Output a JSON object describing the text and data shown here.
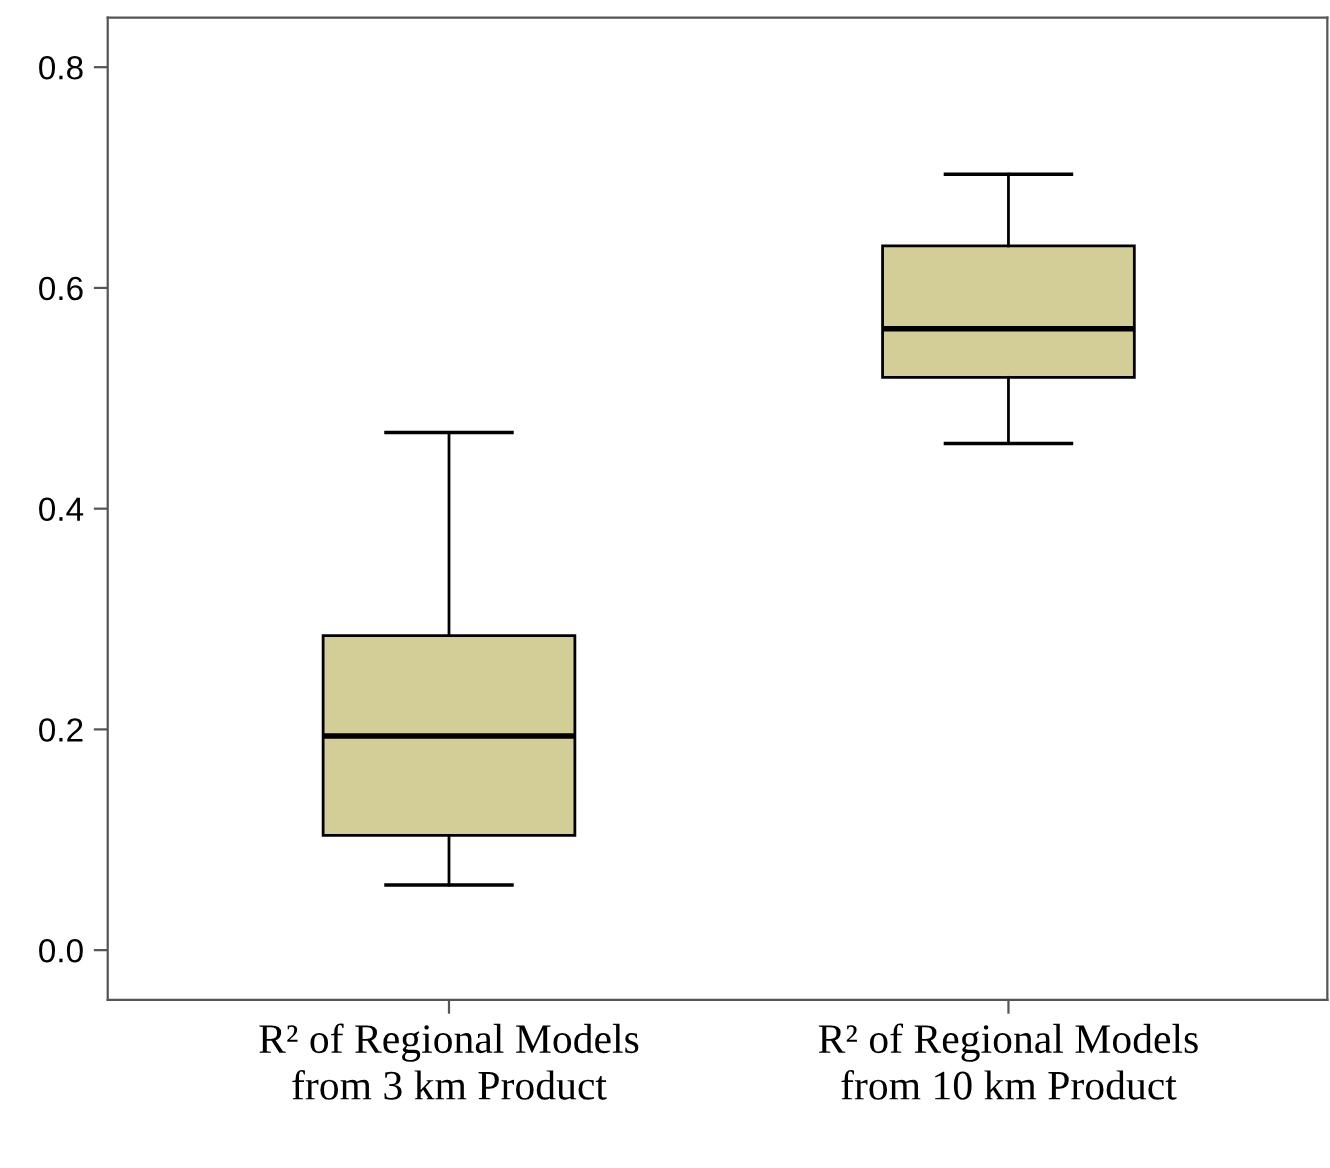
{
  "chart_data": {
    "type": "box",
    "categories": [
      "R² of Regional Models\nfrom 3 km Product",
      "R² of Regional Models\nfrom 10 km Product"
    ],
    "boxes": [
      {
        "low": 0.059,
        "q1": 0.104,
        "median": 0.194,
        "q3": 0.285,
        "high": 0.469
      },
      {
        "low": 0.459,
        "q1": 0.519,
        "median": 0.563,
        "q3": 0.638,
        "high": 0.703
      }
    ],
    "color": "#d3ce98",
    "ylim": [
      -0.045,
      0.845
    ],
    "yticks": [
      {
        "value": 0,
        "label": "0.0"
      },
      {
        "value": 0.2,
        "label": "0.2"
      },
      {
        "value": 0.4,
        "label": "0.4"
      },
      {
        "value": 0.6,
        "label": "0.6"
      },
      {
        "value": 0.8,
        "label": "0.8"
      }
    ],
    "grid": false
  }
}
